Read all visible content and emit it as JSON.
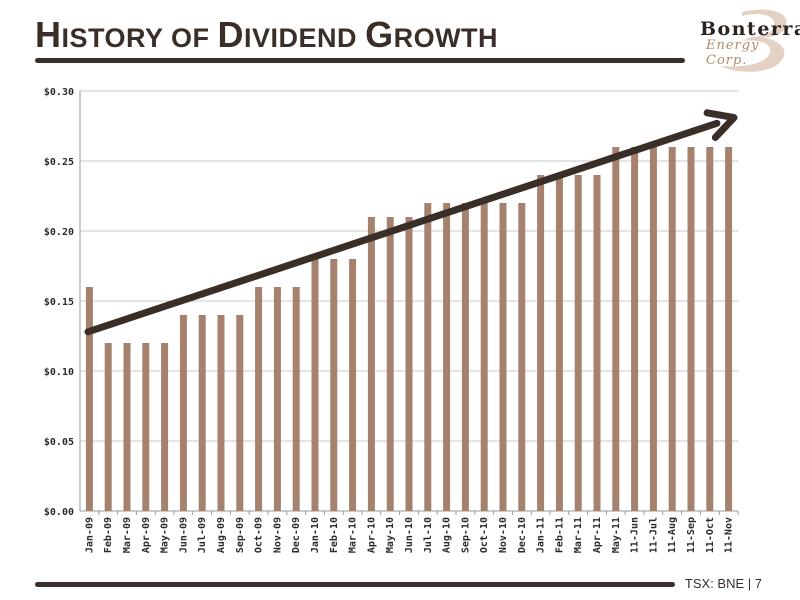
{
  "header": {
    "title_parts": [
      "H",
      "ISTORY OF ",
      "D",
      "IVIDEND ",
      "G",
      "ROWTH"
    ]
  },
  "logo": {
    "name": "Bonterra",
    "subtitle": "Energy Corp.",
    "accent_color": "#b0886a"
  },
  "footer": {
    "text": "TSX: BNE | 7"
  },
  "colors": {
    "bar": "#a5816e",
    "arrow": "#3a2e28",
    "dark": "#3a2e28",
    "grid": "#c8c8c8"
  },
  "chart_data": {
    "type": "bar",
    "title": "",
    "xlabel": "",
    "ylabel": "",
    "ylim": [
      0,
      0.3
    ],
    "yticks": [
      "$0.00",
      "$0.05",
      "$0.10",
      "$0.15",
      "$0.20",
      "$0.25",
      "$0.30"
    ],
    "ytick_values": [
      0,
      0.05,
      0.1,
      0.15,
      0.2,
      0.25,
      0.3
    ],
    "grid": true,
    "legend": "none",
    "trend_arrow": {
      "from": 0.128,
      "to": 0.281,
      "direction": "up"
    },
    "categories": [
      "Jan-09",
      "Feb-09",
      "Mar-09",
      "Apr-09",
      "May-09",
      "Jun-09",
      "Jul-09",
      "Aug-09",
      "Sep-09",
      "Oct-09",
      "Nov-09",
      "Dec-09",
      "Jan-10",
      "Feb-10",
      "Mar-10",
      "Apr-10",
      "May-10",
      "Jun-10",
      "Jul-10",
      "Aug-10",
      "Sep-10",
      "Oct-10",
      "Nov-10",
      "Dec-10",
      "Jan-11",
      "Feb-11",
      "Mar-11",
      "Apr-11",
      "May-11",
      "11-Jun",
      "11-Jul",
      "11-Aug",
      "11-Sep",
      "11-Oct",
      "11-Nov"
    ],
    "values": [
      0.16,
      0.12,
      0.12,
      0.12,
      0.12,
      0.14,
      0.14,
      0.14,
      0.14,
      0.16,
      0.16,
      0.16,
      0.18,
      0.18,
      0.18,
      0.21,
      0.21,
      0.21,
      0.22,
      0.22,
      0.22,
      0.22,
      0.22,
      0.22,
      0.24,
      0.24,
      0.24,
      0.24,
      0.26,
      0.26,
      0.26,
      0.26,
      0.26,
      0.26,
      0.26
    ]
  }
}
